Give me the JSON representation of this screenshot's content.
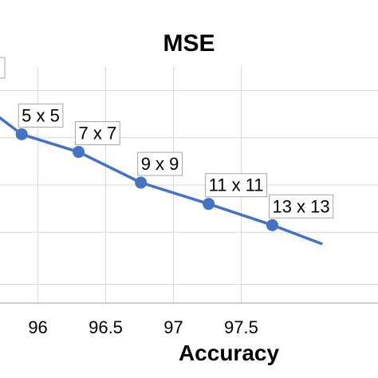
{
  "chart_data": {
    "type": "line",
    "title": "MSE",
    "xlabel": "Accuracy",
    "ylabel": "",
    "xlim": [
      95.72,
      98.51
    ],
    "ylim": [
      0,
      100
    ],
    "x_ticks": [
      "96",
      "96.5",
      "97",
      "97.5"
    ],
    "x_tick_values": [
      96,
      96.5,
      97,
      97.5
    ],
    "y_gridlines": [
      8,
      30,
      50,
      70,
      90
    ],
    "grid": true,
    "series_color": "#4472c4",
    "series": [
      {
        "points": [
          {
            "x": 95.5,
            "y": 88,
            "label": ""
          },
          {
            "x": 95.88,
            "y": 71.5,
            "label": "5 x 5"
          },
          {
            "x": 96.3,
            "y": 64,
            "label": "7 x 7"
          },
          {
            "x": 96.76,
            "y": 51,
            "label": "9 x 9"
          },
          {
            "x": 97.26,
            "y": 42,
            "label": "11 x 11"
          },
          {
            "x": 97.73,
            "y": 33,
            "label": "13 x 13"
          },
          {
            "x": 98.1,
            "y": 25,
            "label": ""
          }
        ]
      }
    ]
  }
}
